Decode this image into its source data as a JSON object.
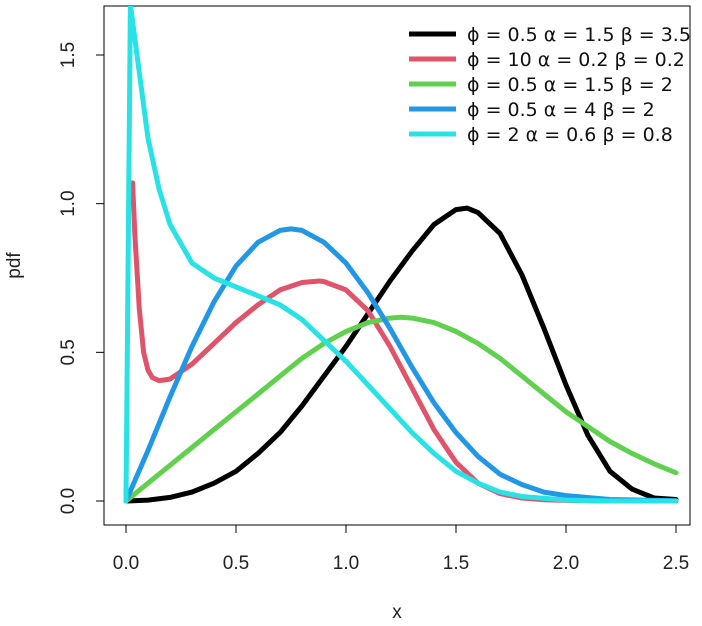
{
  "chart_data": {
    "type": "line",
    "title": "",
    "xlabel": "x",
    "ylabel": "pdf",
    "xlim": [
      0,
      2.5
    ],
    "ylim": [
      0,
      1.67
    ],
    "x_ticks": [
      "0.0",
      "0.5",
      "1.0",
      "1.5",
      "2.0",
      "2.5"
    ],
    "y_ticks": [
      "0.0",
      "0.5",
      "1.0",
      "1.5"
    ],
    "grid": false,
    "legend_position": "top-right",
    "series": [
      {
        "name": "ϕ = 0.5  α = 1.5  β = 3.5",
        "color": "#000000",
        "x": [
          0.0,
          0.1,
          0.2,
          0.3,
          0.4,
          0.5,
          0.6,
          0.7,
          0.8,
          0.9,
          1.0,
          1.1,
          1.2,
          1.3,
          1.4,
          1.5,
          1.55,
          1.6,
          1.7,
          1.8,
          1.9,
          2.0,
          2.1,
          2.2,
          2.3,
          2.4,
          2.5
        ],
        "y": [
          0.0,
          0.003,
          0.012,
          0.03,
          0.06,
          0.1,
          0.16,
          0.23,
          0.32,
          0.42,
          0.52,
          0.63,
          0.74,
          0.84,
          0.93,
          0.98,
          0.985,
          0.97,
          0.9,
          0.76,
          0.58,
          0.39,
          0.22,
          0.1,
          0.04,
          0.01,
          0.005
        ]
      },
      {
        "name": "ϕ = 10  α = 0.2  β = 0.2",
        "color": "#DF536B",
        "x": [
          0.03,
          0.04,
          0.06,
          0.08,
          0.1,
          0.12,
          0.15,
          0.2,
          0.3,
          0.4,
          0.5,
          0.6,
          0.7,
          0.8,
          0.88,
          0.9,
          1.0,
          1.1,
          1.2,
          1.3,
          1.4,
          1.5,
          1.6,
          1.7,
          1.8,
          1.9,
          2.0,
          2.2,
          2.5
        ],
        "y": [
          1.07,
          0.9,
          0.65,
          0.5,
          0.44,
          0.415,
          0.405,
          0.41,
          0.46,
          0.53,
          0.6,
          0.66,
          0.71,
          0.735,
          0.74,
          0.738,
          0.71,
          0.64,
          0.52,
          0.38,
          0.24,
          0.13,
          0.06,
          0.025,
          0.01,
          0.004,
          0.002,
          0.0,
          0.0
        ]
      },
      {
        "name": "ϕ = 0.5  α = 1.5  β = 2",
        "color": "#61D04F",
        "x": [
          0.0,
          0.1,
          0.2,
          0.3,
          0.4,
          0.5,
          0.6,
          0.7,
          0.8,
          0.9,
          1.0,
          1.1,
          1.2,
          1.25,
          1.3,
          1.4,
          1.5,
          1.6,
          1.7,
          1.8,
          1.9,
          2.0,
          2.1,
          2.2,
          2.3,
          2.4,
          2.5
        ],
        "y": [
          0.0,
          0.06,
          0.12,
          0.18,
          0.24,
          0.3,
          0.36,
          0.42,
          0.48,
          0.53,
          0.57,
          0.6,
          0.615,
          0.618,
          0.615,
          0.6,
          0.57,
          0.53,
          0.48,
          0.42,
          0.36,
          0.3,
          0.25,
          0.2,
          0.16,
          0.125,
          0.095
        ]
      },
      {
        "name": "ϕ = 0.5  α = 4  β = 2",
        "color": "#2297E6",
        "x": [
          0.0,
          0.1,
          0.2,
          0.3,
          0.4,
          0.5,
          0.6,
          0.7,
          0.75,
          0.8,
          0.9,
          1.0,
          1.1,
          1.2,
          1.3,
          1.4,
          1.5,
          1.6,
          1.7,
          1.8,
          1.9,
          2.0,
          2.2,
          2.5
        ],
        "y": [
          0.0,
          0.17,
          0.35,
          0.52,
          0.67,
          0.79,
          0.87,
          0.91,
          0.915,
          0.91,
          0.87,
          0.8,
          0.7,
          0.58,
          0.45,
          0.33,
          0.23,
          0.15,
          0.09,
          0.055,
          0.03,
          0.018,
          0.005,
          0.001
        ]
      },
      {
        "name": "ϕ = 2  α = 0.6  β = 0.8",
        "color": "#28E2E5",
        "x": [
          0.0,
          0.02,
          0.05,
          0.1,
          0.15,
          0.2,
          0.3,
          0.4,
          0.5,
          0.6,
          0.7,
          0.8,
          0.9,
          1.0,
          1.1,
          1.2,
          1.3,
          1.4,
          1.5,
          1.6,
          1.7,
          1.8,
          2.0,
          2.2,
          2.5
        ],
        "y": [
          0.0,
          1.67,
          1.5,
          1.22,
          1.05,
          0.93,
          0.8,
          0.75,
          0.72,
          0.69,
          0.66,
          0.61,
          0.54,
          0.47,
          0.39,
          0.31,
          0.23,
          0.16,
          0.1,
          0.06,
          0.03,
          0.015,
          0.003,
          0.0,
          0.0
        ]
      }
    ]
  }
}
